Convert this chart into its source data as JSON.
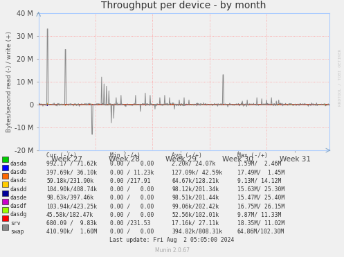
{
  "title": "Throughput per device - by month",
  "ylabel": "Bytes/second read (-) / write (+)",
  "xlabel_ticks": [
    "Week 27",
    "Week 28",
    "Week 29",
    "Week 30",
    "Week 31"
  ],
  "ylim": [
    -20000000,
    40000000
  ],
  "yticks": [
    -20000000,
    -10000000,
    0,
    10000000,
    20000000,
    30000000,
    40000000
  ],
  "ytick_labels": [
    "-20 M",
    "-10 M",
    "0",
    "10 M",
    "20 M",
    "30 M",
    "40 M"
  ],
  "bg_color": "#F0F0F0",
  "plot_bg_color": "#F0F0F0",
  "grid_color": "#FF9999",
  "legend_items": [
    {
      "label": "dasda",
      "color": "#00CC00"
    },
    {
      "label": "dasdb",
      "color": "#0000FF"
    },
    {
      "label": "dasdc",
      "color": "#FF6600"
    },
    {
      "label": "dasdd",
      "color": "#FFCC00"
    },
    {
      "label": "dasde",
      "color": "#000099"
    },
    {
      "label": "dasdf",
      "color": "#CC00CC"
    },
    {
      "label": "dasdg",
      "color": "#99FF00"
    },
    {
      "label": "srv",
      "color": "#FF0000"
    },
    {
      "label": "swap",
      "color": "#888888"
    }
  ],
  "table_col_header": [
    "",
    "Cur (-/+)",
    "Min (-/+)",
    "Avg (-/+)",
    "Max (-/+)"
  ],
  "table_data": [
    [
      "dasda",
      "992.17 / 71.62k",
      "0.00 /   0.00",
      "2.20k/ 24.07k",
      "1.59M/  2.46M"
    ],
    [
      "dasdb",
      "397.69k/ 36.10k",
      "0.00 / 11.23k",
      "127.09k/ 42.59k",
      "17.49M/  1.45M"
    ],
    [
      "dasdc",
      "59.18k/231.90k",
      "0.00 /217.91",
      "64.67k/128.21k",
      "9.13M/ 14.12M"
    ],
    [
      "dasdd",
      "104.90k/408.74k",
      "0.00 /   0.00",
      "98.12k/201.34k",
      "15.63M/ 25.30M"
    ],
    [
      "dasde",
      "98.63k/397.46k",
      "0.00 /   0.00",
      "98.51k/201.44k",
      "15.47M/ 25.40M"
    ],
    [
      "dasdf",
      "103.94k/423.25k",
      "0.00 /   0.00",
      "99.06k/202.42k",
      "16.75M/ 26.15M"
    ],
    [
      "dasdg",
      "45.58k/182.47k",
      "0.00 /   0.00",
      "52.56k/102.01k",
      "9.87M/ 11.33M"
    ],
    [
      "srv",
      "680.09 /  9.83k",
      "0.00 /231.53",
      "17.16k/ 27.11k",
      "18.35M/ 11.02M"
    ],
    [
      "swap",
      "410.90k/  1.60M",
      "0.00 /   0.00",
      "394.82k/808.31k",
      "64.86M/102.30M"
    ]
  ],
  "last_update": "Last update: Fri Aug  2 05:05:00 2024",
  "munin_version": "Munin 2.0.67",
  "watermark": "RRDTOOL / TOBI OETIKER"
}
